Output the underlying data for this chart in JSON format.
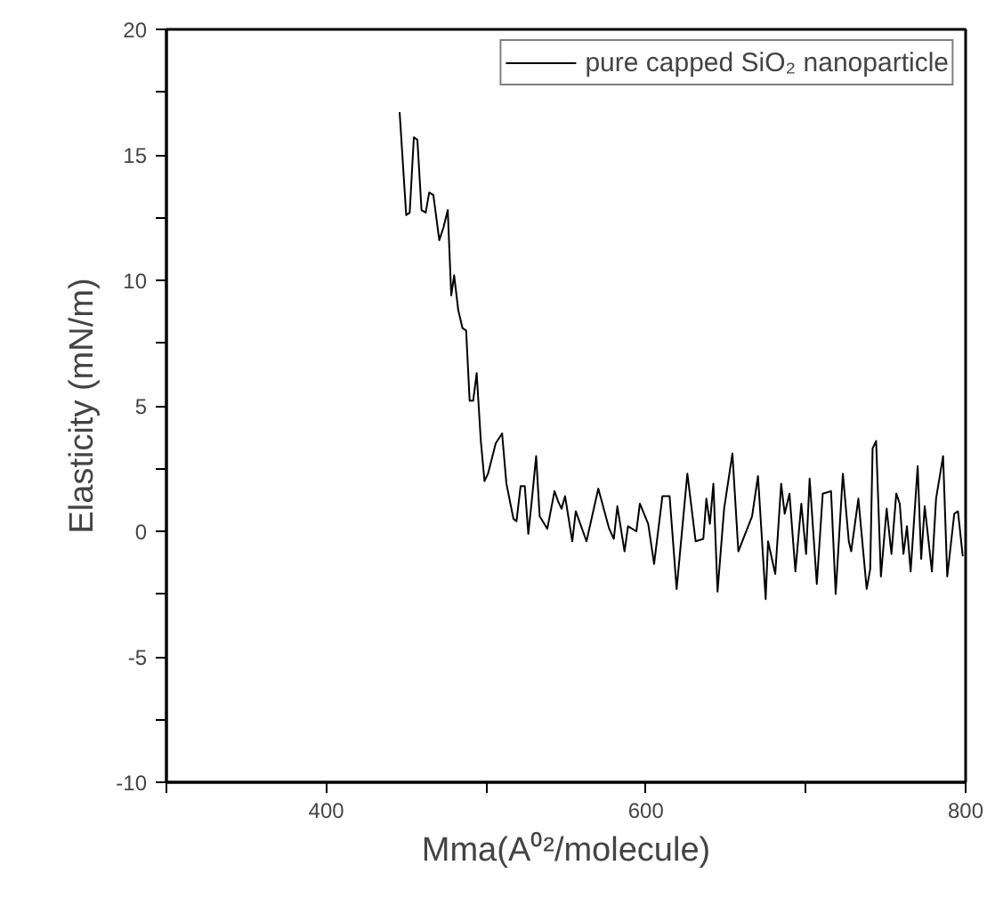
{
  "chart_data": {
    "type": "line",
    "xlabel": "Mma(A⁰²/molecule)",
    "ylabel": "Elasticity (mN/m)",
    "series": [
      {
        "name": "pure capped SiO₂ nanoparticle",
        "color": "#000000",
        "x": [
          445.9,
          450,
          452.2,
          454.8,
          457,
          459.6,
          462.2,
          464.4,
          467,
          470.7,
          473.3,
          476,
          478.2,
          480,
          482.6,
          485.2,
          487.5,
          489.7,
          491.9,
          494.1,
          496.7,
          499,
          501.2,
          506,
          510,
          512.7,
          517.1,
          519,
          521.6,
          524.2,
          526.4,
          528.7,
          531.3,
          533.5,
          538.3,
          542.8,
          545,
          547.2,
          549.4,
          553.9,
          556.1,
          562.8,
          570.2,
          577,
          579.9,
          582.1,
          586.6,
          588.8,
          594,
          596.2,
          601.4,
          605.1,
          610.3,
          614.8,
          619.2,
          625.9,
          631.1,
          635.9,
          637.8,
          640,
          642.2,
          644.8,
          648.9,
          654.1,
          657.8,
          666.4,
          670.1,
          674.9,
          676.4,
          680.9,
          684.6,
          686.8,
          689.8,
          693.5,
          697.2,
          700.2,
          702.4,
          706.9,
          710.6,
          715.8,
          718.7,
          723.2,
          726.9,
          728.4,
          732.9,
          738.1,
          740.3,
          741.8,
          744,
          747,
          750.6,
          753.6,
          756.6,
          758.8,
          761.1,
          763.3,
          765.6,
          770,
          772.2,
          774.4,
          778.9,
          781.5,
          785.9,
          788.5,
          792.9,
          795.2,
          798.2
        ],
        "values": [
          16.7,
          12.6,
          12.7,
          15.7,
          15.6,
          12.8,
          12.7,
          13.5,
          13.4,
          11.6,
          12.1,
          12.8,
          9.4,
          10.2,
          8.8,
          8.1,
          8.0,
          5.2,
          5.2,
          6.3,
          3.6,
          2.0,
          2.3,
          3.5,
          3.9,
          1.9,
          0.5,
          0.4,
          1.8,
          1.8,
          -0.1,
          1.3,
          3.0,
          0.6,
          0.1,
          1.6,
          1.2,
          0.9,
          1.4,
          -0.4,
          0.8,
          -0.4,
          1.7,
          0.1,
          -0.3,
          1.0,
          -0.8,
          0.2,
          0.0,
          1.1,
          0.3,
          -1.3,
          1.4,
          1.4,
          -2.3,
          2.3,
          -0.4,
          -0.3,
          1.3,
          0.3,
          1.9,
          -2.4,
          0.9,
          3.1,
          -0.8,
          0.6,
          2.2,
          -2.7,
          -0.4,
          -1.7,
          1.9,
          0.7,
          1.5,
          -1.6,
          1.1,
          -0.9,
          2.1,
          -2.1,
          1.5,
          1.6,
          -2.5,
          2.3,
          -0.4,
          -0.8,
          1.3,
          -2.3,
          -1.5,
          3.3,
          3.6,
          -1.8,
          0.9,
          -0.9,
          1.5,
          1.1,
          -0.9,
          0.2,
          -1.6,
          2.6,
          -1.1,
          1.0,
          -1.6,
          1.3,
          3.0,
          -1.8,
          0.7,
          0.8,
          -1.0
        ]
      }
    ],
    "xlim": [
      300,
      800
    ],
    "xticks": [
      {
        "value": 300,
        "label": null
      },
      400,
      {
        "value": 500,
        "label": null
      },
      600,
      {
        "value": 700,
        "label": null
      },
      800
    ],
    "ylim": [
      -10,
      20
    ],
    "yticks": [
      -10,
      {
        "value": -7.5,
        "label": null
      },
      -5,
      {
        "value": -2.5,
        "label": null
      },
      0,
      {
        "value": 2.5,
        "label": null
      },
      5,
      {
        "value": 7.5,
        "label": null
      },
      10,
      {
        "value": 12.5,
        "label": null
      },
      15,
      {
        "value": 17.5,
        "label": null
      },
      20
    ],
    "grid": false,
    "legend": "top right",
    "marker": "none",
    "line_style": "solid"
  }
}
